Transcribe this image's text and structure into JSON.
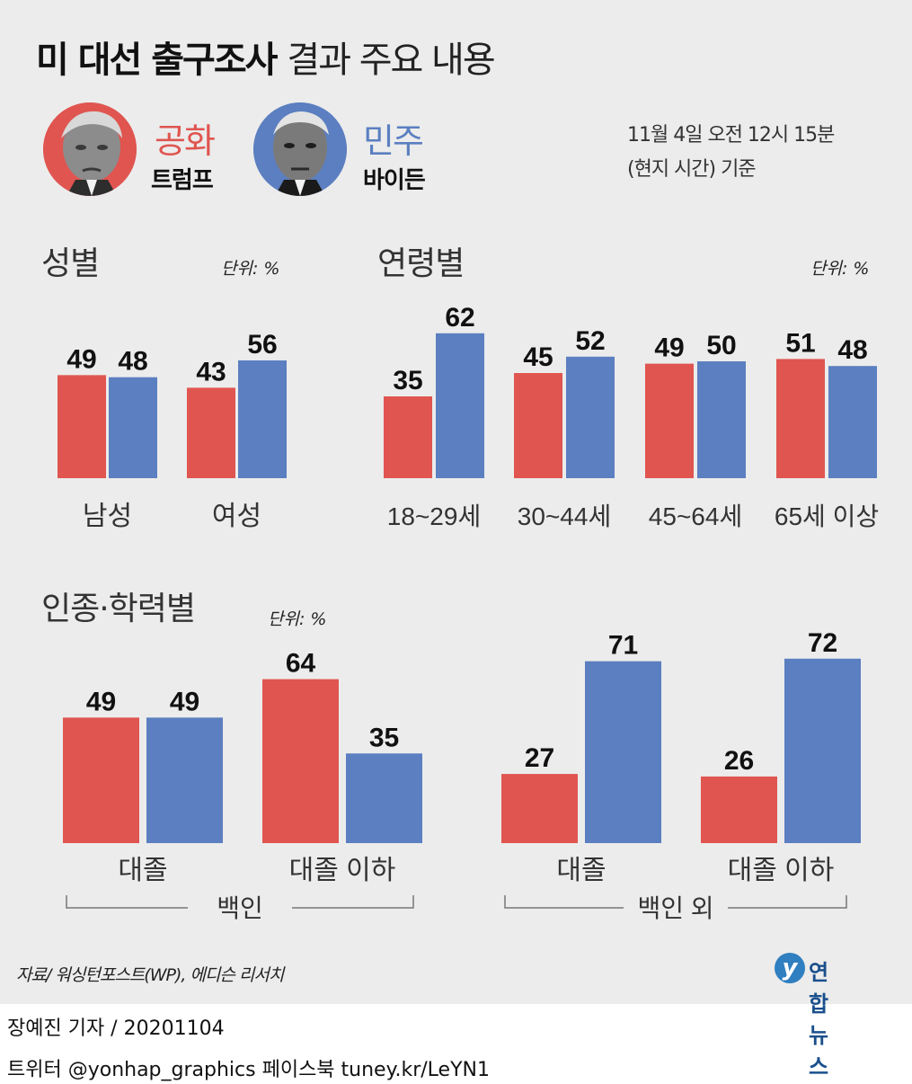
{
  "header": {
    "title_bold": "미 대선 출구조사",
    "title_light": "결과 주요 내용",
    "timestamp_line1": "11월 4일 오전 12시 15분",
    "timestamp_line2": "(현지 시간) 기준"
  },
  "candidates": [
    {
      "party": "공화",
      "name": "트럼프",
      "color": "#e05550"
    },
    {
      "party": "민주",
      "name": "바이든",
      "color": "#5b7fc0"
    }
  ],
  "colors": {
    "republican": "#e05550",
    "democrat": "#5b7fc0",
    "panel": "#ececec"
  },
  "chart_data": [
    {
      "type": "bar",
      "title": "성별",
      "unit_label": "단위: %",
      "categories": [
        "남성",
        "여성"
      ],
      "series": [
        {
          "name": "공화",
          "values": [
            49,
            43
          ]
        },
        {
          "name": "민주",
          "values": [
            48,
            56
          ]
        }
      ]
    },
    {
      "type": "bar",
      "title": "연령별",
      "unit_label": "단위: %",
      "categories": [
        "18~29세",
        "30~44세",
        "45~64세",
        "65세 이상"
      ],
      "series": [
        {
          "name": "공화",
          "values": [
            35,
            45,
            49,
            51
          ]
        },
        {
          "name": "민주",
          "values": [
            62,
            52,
            50,
            48
          ]
        }
      ]
    },
    {
      "type": "bar",
      "title": "인종·학력별",
      "unit_label": "단위: %",
      "categories": [
        "대졸",
        "대졸 이하",
        "대졸",
        "대졸 이하"
      ],
      "groups": [
        {
          "label": "백인",
          "categories": [
            "대졸",
            "대졸 이하"
          ]
        },
        {
          "label": "백인 외",
          "categories": [
            "대졸",
            "대졸 이하"
          ]
        }
      ],
      "series": [
        {
          "name": "공화",
          "values": [
            49,
            64,
            27,
            26
          ]
        },
        {
          "name": "민주",
          "values": [
            49,
            35,
            71,
            72
          ]
        }
      ]
    }
  ],
  "footer": {
    "source": "자료/ 워싱턴포스트(WP), 에디슨 리서치",
    "logo_text": "연합뉴스",
    "reporter": "장예진 기자 / 20201104",
    "social": "트위터 @yonhap_graphics  페이스북 tuney.kr/LeYN1"
  }
}
